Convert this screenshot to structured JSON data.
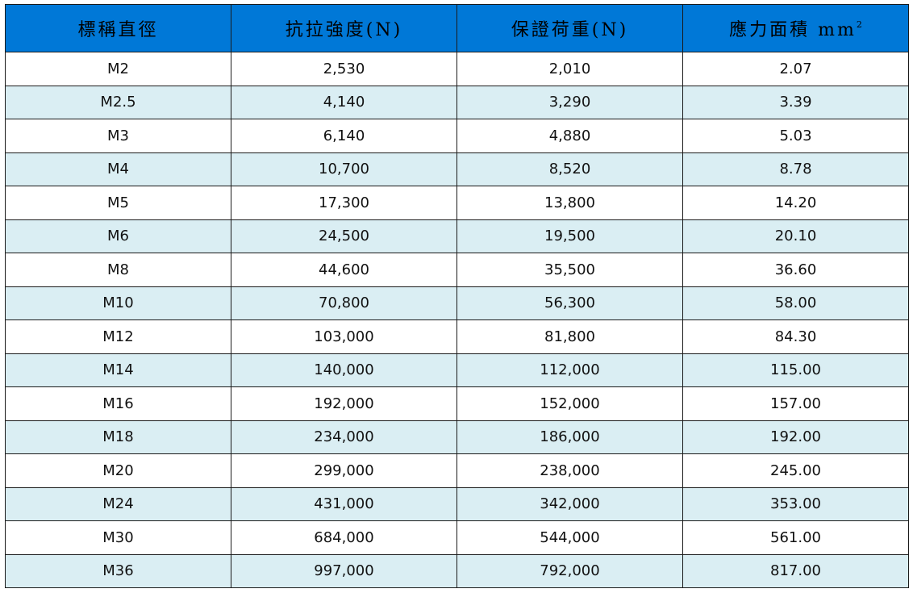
{
  "table": {
    "headers": {
      "nominal_diameter": "標稱直徑",
      "tensile_strength": "抗拉強度(N)",
      "proof_load": "保證荷重(N)",
      "stress_area": "應力面積 mm",
      "stress_area_sup": "2"
    },
    "colors": {
      "header_bg": "#0078d7",
      "stripe_bg": "#daeef3",
      "row_bg": "#ffffff",
      "border": "#1a1a1a"
    },
    "rows": [
      [
        "M2",
        "2,530",
        "2,010",
        "2.07"
      ],
      [
        "M2.5",
        "4,140",
        "3,290",
        "3.39"
      ],
      [
        "M3",
        "6,140",
        "4,880",
        "5.03"
      ],
      [
        "M4",
        "10,700",
        "8,520",
        "8.78"
      ],
      [
        "M5",
        "17,300",
        "13,800",
        "14.20"
      ],
      [
        "M6",
        "24,500",
        "19,500",
        "20.10"
      ],
      [
        "M8",
        "44,600",
        "35,500",
        "36.60"
      ],
      [
        "M10",
        "70,800",
        "56,300",
        "58.00"
      ],
      [
        "M12",
        "103,000",
        "81,800",
        "84.30"
      ],
      [
        "M14",
        "140,000",
        "112,000",
        "115.00"
      ],
      [
        "M16",
        "192,000",
        "152,000",
        "157.00"
      ],
      [
        "M18",
        "234,000",
        "186,000",
        "192.00"
      ],
      [
        "M20",
        "299,000",
        "238,000",
        "245.00"
      ],
      [
        "M24",
        "431,000",
        "342,000",
        "353.00"
      ],
      [
        "M30",
        "684,000",
        "544,000",
        "561.00"
      ],
      [
        "M36",
        "997,000",
        "792,000",
        "817.00"
      ]
    ]
  }
}
